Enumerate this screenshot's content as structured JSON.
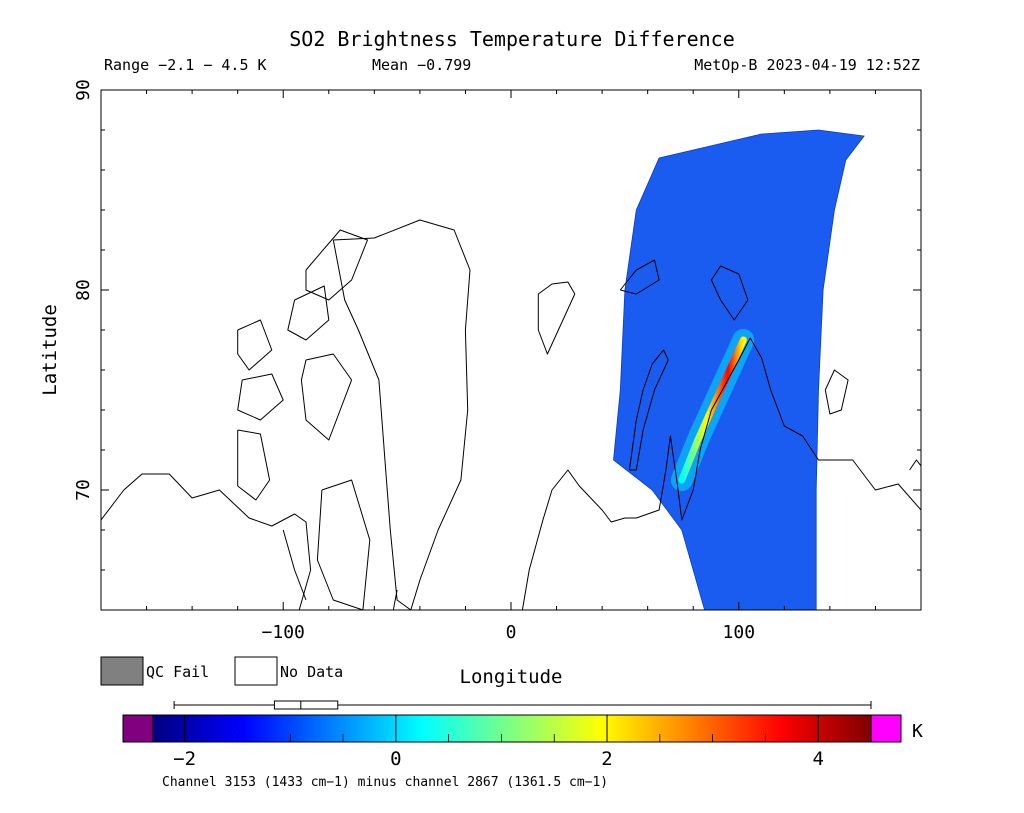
{
  "title": "SO2 Brightness Temperature Difference",
  "header": {
    "range": "Range −2.1 − 4.5 K",
    "mean": "Mean −0.799",
    "satellite_time": "MetOp-B 2023-04-19 12:52Z"
  },
  "legend": {
    "qc_fail": "QC Fail",
    "no_data": "No Data",
    "qc_fail_color": "#808080",
    "no_data_color": "#ffffff"
  },
  "colorbar": {
    "unit": "K",
    "ticks": [
      "−2",
      "0",
      "2",
      "4"
    ],
    "tick_values": [
      -2,
      0,
      2,
      4
    ],
    "min": -2.3,
    "max": 4.5,
    "under_color": "#800080",
    "over_color": "#ff00ff",
    "stops": [
      "#000080",
      "#0000ff",
      "#0080ff",
      "#00ffff",
      "#80ff80",
      "#ffff00",
      "#ff8000",
      "#ff0000",
      "#800000"
    ],
    "boxplot": {
      "whisker_low": -2.1,
      "q1": -1.15,
      "median": -0.9,
      "q3": -0.55,
      "whisker_high": 4.5
    }
  },
  "footnote": "Channel 3153 (1433 cm−1) minus channel 2867 (1361.5 cm−1)",
  "chart_data": {
    "type": "heatmap",
    "title": "SO2 Brightness Temperature Difference",
    "xlabel": "Longitude",
    "ylabel": "Latitude",
    "xlim": [
      -180,
      180
    ],
    "ylim": [
      64,
      90
    ],
    "xticks": [
      -100,
      0,
      100
    ],
    "xtick_labels": [
      "−100",
      "0",
      "100"
    ],
    "yticks": [
      70,
      80,
      90
    ],
    "ytick_labels": [
      "70",
      "80",
      "90"
    ],
    "grid": false,
    "value_range": [
      -2.1,
      4.5
    ],
    "mean": -0.799,
    "unit": "K",
    "swath_polygon": [
      [
        45,
        71.5
      ],
      [
        48,
        75
      ],
      [
        50,
        80
      ],
      [
        55,
        84
      ],
      [
        65,
        86.6
      ],
      [
        80,
        87
      ],
      [
        110,
        87.8
      ],
      [
        135,
        88.0
      ],
      [
        155,
        87.7
      ],
      [
        147,
        86.5
      ],
      [
        142,
        84
      ],
      [
        137,
        80
      ],
      [
        135,
        75
      ],
      [
        134,
        70
      ],
      [
        134,
        64
      ],
      [
        85,
        64
      ],
      [
        75,
        68
      ],
      [
        62,
        70
      ]
    ],
    "plume_track": [
      [
        75,
        70.5
      ],
      [
        82,
        72.5
      ],
      [
        88,
        74
      ],
      [
        96,
        76
      ],
      [
        102,
        77.5
      ]
    ],
    "plume_peak_value": 4.5,
    "coastlines": [
      [
        [
          -78,
          82.5
        ],
        [
          -60,
          82.6
        ],
        [
          -40,
          83.5
        ],
        [
          -25,
          83
        ],
        [
          -18,
          81
        ],
        [
          -20,
          78
        ],
        [
          -19,
          74
        ],
        [
          -22,
          70.5
        ],
        [
          -32,
          68
        ],
        [
          -40,
          65.5
        ],
        [
          -44,
          64
        ],
        [
          -50,
          64.5
        ],
        [
          -53,
          68
        ],
        [
          -55,
          71
        ],
        [
          -58,
          75.5
        ],
        [
          -67,
          78
        ],
        [
          -73,
          79.5
        ],
        [
          -78,
          82.5
        ]
      ],
      [
        [
          -90,
          81
        ],
        [
          -75,
          83
        ],
        [
          -63,
          82.5
        ],
        [
          -70,
          80.5
        ],
        [
          -80,
          79.5
        ],
        [
          -90,
          80
        ],
        [
          -90,
          81
        ]
      ],
      [
        [
          -95,
          79.5
        ],
        [
          -82,
          80.2
        ],
        [
          -80,
          78.5
        ],
        [
          -90,
          77.5
        ],
        [
          -98,
          78
        ],
        [
          -95,
          79.5
        ]
      ],
      [
        [
          -120,
          78
        ],
        [
          -110,
          78.5
        ],
        [
          -105,
          77
        ],
        [
          -115,
          76
        ],
        [
          -120,
          76.8
        ],
        [
          -120,
          78
        ]
      ],
      [
        [
          -118,
          75.5
        ],
        [
          -105,
          75.8
        ],
        [
          -100,
          74.5
        ],
        [
          -110,
          73.5
        ],
        [
          -120,
          74
        ],
        [
          -118,
          75.5
        ]
      ],
      [
        [
          -90,
          76.5
        ],
        [
          -78,
          76.8
        ],
        [
          -70,
          75.5
        ],
        [
          -80,
          72.5
        ],
        [
          -90,
          73.5
        ],
        [
          -92,
          75.5
        ],
        [
          -90,
          76.5
        ]
      ],
      [
        [
          -83,
          70
        ],
        [
          -70,
          70.5
        ],
        [
          -62,
          67.5
        ],
        [
          -65,
          64
        ],
        [
          -78,
          64.5
        ],
        [
          -85,
          66.5
        ],
        [
          -83,
          70
        ]
      ],
      [
        [
          -120,
          73
        ],
        [
          -110,
          72.8
        ],
        [
          -106,
          70.5
        ],
        [
          -112,
          69.5
        ],
        [
          -120,
          70.2
        ],
        [
          -120,
          73
        ]
      ],
      [
        [
          -180,
          68.5
        ],
        [
          -170,
          70
        ],
        [
          -162,
          70.8
        ],
        [
          -150,
          70.8
        ],
        [
          -140,
          69.6
        ],
        [
          -128,
          70
        ],
        [
          -115,
          68.6
        ],
        [
          -105,
          68.2
        ],
        [
          -95,
          68.8
        ],
        [
          -90,
          68.4
        ],
        [
          -88,
          66
        ],
        [
          -93,
          64
        ]
      ],
      [
        [
          12,
          79.8
        ],
        [
          18,
          80.3
        ],
        [
          25,
          80.4
        ],
        [
          28,
          79.8
        ],
        [
          22,
          78.3
        ],
        [
          16,
          76.8
        ],
        [
          12,
          78
        ],
        [
          12,
          79.8
        ]
      ],
      [
        [
          5,
          64
        ],
        [
          8,
          66
        ],
        [
          14,
          68.5
        ],
        [
          18,
          70
        ],
        [
          25,
          71
        ],
        [
          30,
          70.2
        ],
        [
          40,
          69
        ],
        [
          44,
          68.4
        ],
        [
          50,
          68.6
        ],
        [
          55,
          68.6
        ],
        [
          65,
          69
        ],
        [
          68,
          71
        ],
        [
          70,
          72.7
        ],
        [
          73,
          70.3
        ],
        [
          75,
          68.5
        ],
        [
          80,
          70
        ],
        [
          83,
          72
        ],
        [
          88,
          74
        ],
        [
          100,
          76.5
        ],
        [
          105,
          77.6
        ],
        [
          110,
          76.6
        ],
        [
          114,
          75
        ],
        [
          120,
          73.2
        ],
        [
          128,
          72.7
        ],
        [
          135,
          71.5
        ],
        [
          150,
          71.5
        ],
        [
          160,
          70
        ],
        [
          170,
          70.3
        ],
        [
          180,
          69
        ]
      ],
      [
        [
          52,
          71
        ],
        [
          55,
          73.5
        ],
        [
          58,
          75
        ],
        [
          62,
          76.3
        ],
        [
          67,
          77
        ],
        [
          69,
          76.5
        ],
        [
          63,
          75
        ],
        [
          58,
          73
        ],
        [
          55,
          71
        ],
        [
          52,
          71
        ]
      ],
      [
        [
          88,
          80.5
        ],
        [
          92,
          81.2
        ],
        [
          100,
          80.8
        ],
        [
          104,
          79.5
        ],
        [
          98,
          78.5
        ],
        [
          92,
          79.5
        ],
        [
          88,
          80.5
        ]
      ],
      [
        [
          48,
          80
        ],
        [
          55,
          81
        ],
        [
          63,
          81.5
        ],
        [
          65,
          80.5
        ],
        [
          55,
          79.8
        ],
        [
          48,
          80
        ]
      ],
      [
        [
          138,
          75
        ],
        [
          142,
          76
        ],
        [
          148,
          75.5
        ],
        [
          145,
          74
        ],
        [
          140,
          73.8
        ],
        [
          138,
          75
        ]
      ],
      [
        [
          175,
          71
        ],
        [
          178,
          71.5
        ],
        [
          180,
          71.2
        ]
      ],
      [
        [
          -50,
          65
        ],
        [
          -52,
          63.8
        ]
      ],
      [
        [
          -90,
          64.5
        ],
        [
          -95,
          66
        ],
        [
          -100,
          68
        ]
      ]
    ]
  }
}
